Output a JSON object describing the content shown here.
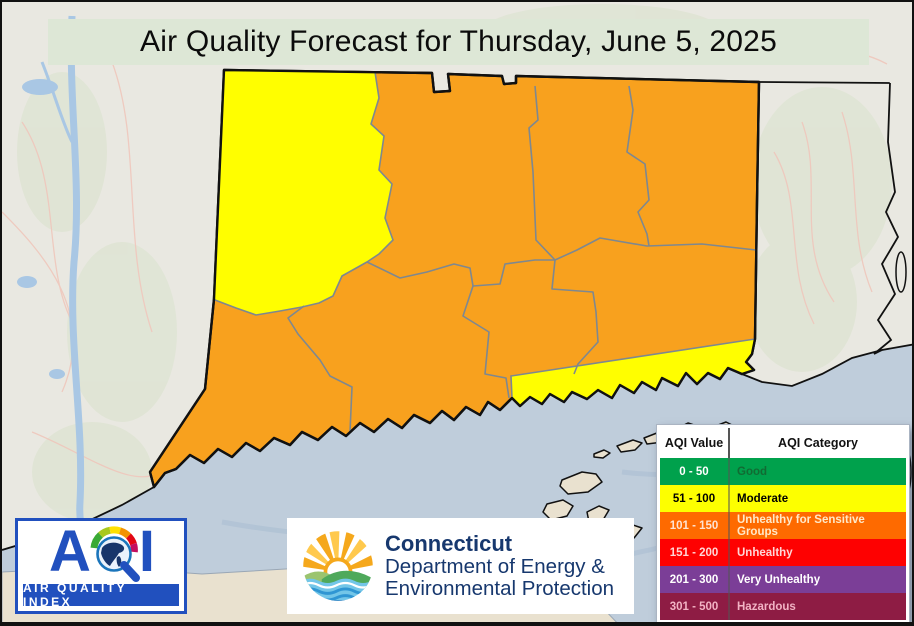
{
  "title": "Air Quality Forecast for Thursday, June 5, 2025",
  "map": {
    "state": "Connecticut",
    "colors": {
      "moderate_yellow": "#FFFE00",
      "usg_orange": "#F8A11E",
      "water": "#BFCDDB",
      "land": "#E9E8E1",
      "land_tan": "#E9E1CF",
      "county_line": "#7E8890",
      "state_outline": "#111111"
    },
    "regions": [
      {
        "area": "Northwest Connecticut",
        "aqi_category": "Moderate",
        "color": "#FFFE00"
      },
      {
        "area": "Central, eastern and western Connecticut",
        "aqi_category": "Unhealthy for Sensitive Groups",
        "color": "#F8A11E"
      },
      {
        "area": "Southeastern shoreline strip",
        "aqi_category": "Moderate",
        "color": "#FFFE00"
      }
    ]
  },
  "legend": {
    "headers": [
      "AQI Value",
      "AQI Category"
    ],
    "rows": [
      {
        "value": "0 - 50",
        "category": "Good",
        "bg": "#00A14C",
        "value_color": "#FFFFFF",
        "category_color": "#116B33"
      },
      {
        "value": "51 - 100",
        "category": "Moderate",
        "bg": "#FDFF00",
        "value_color": "#000000",
        "category_color": "#000000"
      },
      {
        "value": "101 - 150",
        "category": "Unhealthy for Sensitive Groups",
        "bg": "#FE6A00",
        "value_color": "#FFE3D2",
        "category_color": "#FFE9C9"
      },
      {
        "value": "151 - 200",
        "category": "Unhealthy",
        "bg": "#FE0101",
        "value_color": "#FFD6D6",
        "category_color": "#FFD6D6"
      },
      {
        "value": "201 - 300",
        "category": "Very Unhealthy",
        "bg": "#7B3E97",
        "value_color": "#FFFFFF",
        "category_color": "#FFFFFF"
      },
      {
        "value": "301 - 500",
        "category": "Hazardous",
        "bg": "#8E1C44",
        "value_color": "#F2B3C4",
        "category_color": "#F2B3C4"
      }
    ]
  },
  "aqi_logo": {
    "letter_a": "A",
    "letter_i": "I",
    "banner": "AIR QUALITY INDEX",
    "blue": "#2150BE"
  },
  "deep_logo": {
    "line1": "Connecticut",
    "line2": "Department of Energy &",
    "line3": "Environmental Protection",
    "navy": "#17386E"
  }
}
